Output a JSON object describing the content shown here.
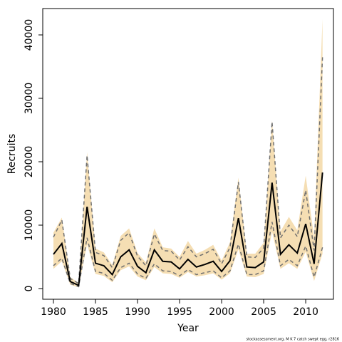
{
  "chart_data": {
    "type": "line",
    "x_label": "Year",
    "y_label": "Recruits",
    "footnote": "stockassessment.org, M K 7 catch swept egg, r2816",
    "x": [
      1980,
      1981,
      1982,
      1983,
      1984,
      1985,
      1986,
      1987,
      1988,
      1989,
      1990,
      1991,
      1992,
      1993,
      1994,
      1995,
      1996,
      1997,
      1998,
      1999,
      2000,
      2001,
      2002,
      2003,
      2004,
      2005,
      2006,
      2007,
      2008,
      2009,
      2010,
      2011,
      2012
    ],
    "values": [
      5400,
      7100,
      1100,
      500,
      12900,
      4000,
      3600,
      2200,
      5000,
      6100,
      3500,
      2500,
      6100,
      4300,
      4200,
      3100,
      4600,
      3400,
      3800,
      4300,
      2700,
      4400,
      11100,
      3400,
      3300,
      4200,
      16700,
      5400,
      6900,
      5600,
      10200,
      3900,
      18300
    ],
    "ci_upper": [
      8100,
      10800,
      1600,
      800,
      21000,
      5700,
      5200,
      3300,
      7600,
      8800,
      5100,
      3600,
      8600,
      6000,
      5900,
      4500,
      6600,
      5000,
      5500,
      6200,
      3900,
      6500,
      16800,
      5000,
      4900,
      6400,
      26300,
      8000,
      10000,
      8200,
      15500,
      6000,
      36500
    ],
    "ci_lower": [
      3600,
      4800,
      800,
      300,
      8000,
      2700,
      2400,
      1300,
      3300,
      4000,
      2300,
      1600,
      3900,
      2800,
      2700,
      2000,
      3000,
      2200,
      2500,
      2800,
      1700,
      2800,
      7000,
      2200,
      2200,
      2800,
      10500,
      3600,
      4600,
      3600,
      6700,
      1800,
      6500
    ],
    "band_upper": [
      8800,
      11200,
      1800,
      900,
      21500,
      6300,
      5700,
      3700,
      8300,
      9500,
      5600,
      4100,
      9500,
      6500,
      6300,
      5000,
      7500,
      5500,
      6100,
      6900,
      4400,
      7300,
      17500,
      5500,
      5500,
      7200,
      26500,
      9000,
      11300,
      9200,
      17800,
      8000,
      42500
    ],
    "band_lower": [
      3100,
      4300,
      600,
      200,
      7000,
      2300,
      2000,
      1000,
      2900,
      3500,
      1900,
      1300,
      3400,
      2400,
      2300,
      1700,
      2600,
      1900,
      2100,
      2400,
      1400,
      2400,
      6200,
      1900,
      1800,
      2300,
      9000,
      3100,
      4000,
      3100,
      5800,
      1200,
      5500
    ],
    "color": "#000000",
    "ci_color": "#707070",
    "band_color": "#f5deb3",
    "xlim": [
      1978.73,
      2013.3
    ],
    "ylim": [
      -1685,
      44157
    ],
    "xticks": [
      1980,
      1985,
      1990,
      1995,
      2000,
      2005,
      2010
    ],
    "yticks": [
      0,
      10000,
      20000,
      30000,
      40000
    ]
  }
}
